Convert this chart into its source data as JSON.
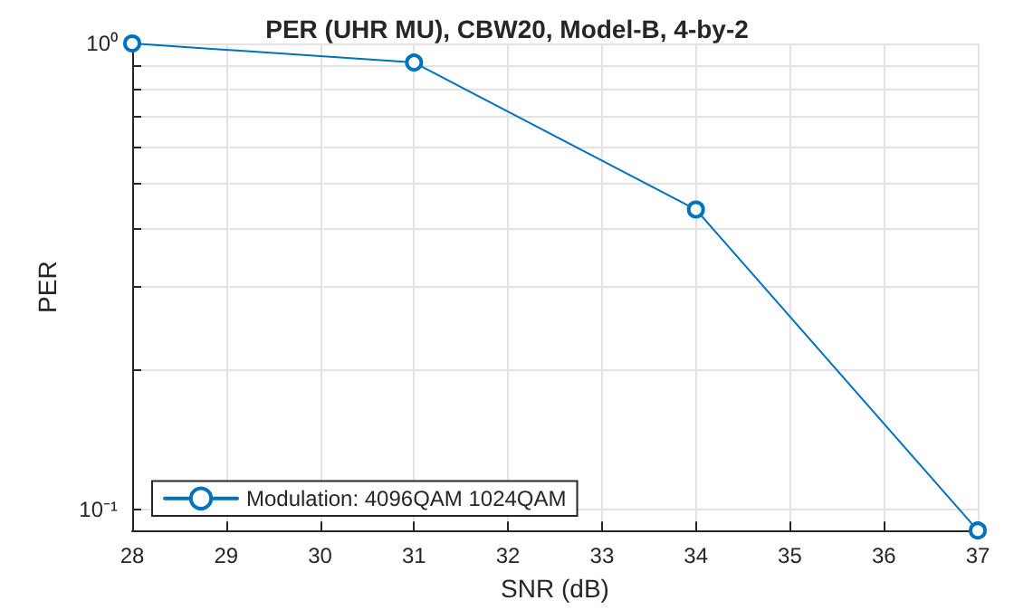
{
  "chart_data": {
    "type": "line",
    "title": "PER (UHR MU), CBW20, Model-B, 4-by-2",
    "xlabel": "SNR (dB)",
    "ylabel": "PER",
    "x": [
      28,
      31,
      34,
      37
    ],
    "series": [
      {
        "name": "Modulation: 4096QAM 1024QAM",
        "color": "#0072bd",
        "values": [
          1,
          0.91,
          0.44,
          0.09
        ]
      }
    ],
    "xlim": [
      28,
      37
    ],
    "xticks": [
      28,
      29,
      30,
      31,
      32,
      33,
      34,
      35,
      36,
      37
    ],
    "ylim": [
      0.09,
      1
    ],
    "yticks": [
      {
        "value": 0.1,
        "label": "10⁻¹"
      },
      {
        "value": 0.2,
        "label": null
      },
      {
        "value": 0.3,
        "label": null
      },
      {
        "value": 0.4,
        "label": null
      },
      {
        "value": 0.5,
        "label": null
      },
      {
        "value": 0.6,
        "label": null
      },
      {
        "value": 0.7,
        "label": null
      },
      {
        "value": 0.8,
        "label": null
      },
      {
        "value": 0.9,
        "label": null
      },
      {
        "value": 1,
        "label": "10⁰"
      }
    ],
    "log": "y",
    "grid": true,
    "legend": "bottom left",
    "marker": "circle",
    "line_style": "solid"
  }
}
